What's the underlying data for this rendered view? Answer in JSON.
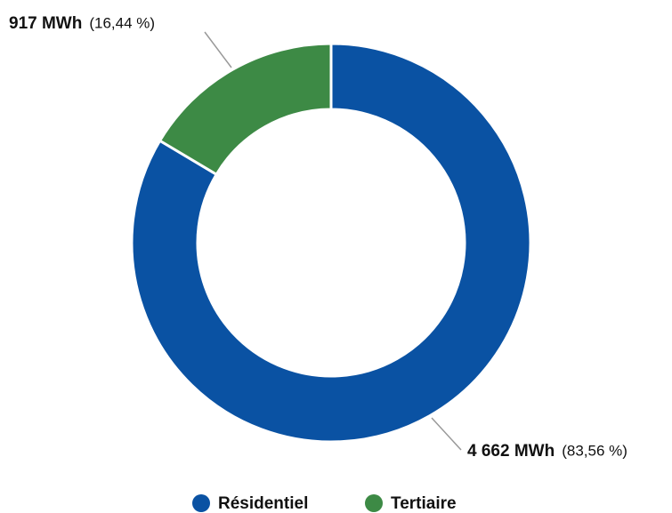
{
  "chart_data": {
    "type": "donut",
    "categories": [
      "Résidentiel",
      "Tertiaire"
    ],
    "values": [
      4662,
      917
    ],
    "value_labels": [
      "4 662 MWh",
      "917 MWh"
    ],
    "percents": [
      83.56,
      16.44
    ],
    "percent_labels": [
      "(83,56 %)",
      "(16,44 %)"
    ],
    "colors": [
      "#0a52a3",
      "#3d8a45"
    ],
    "legend": "bottom"
  }
}
